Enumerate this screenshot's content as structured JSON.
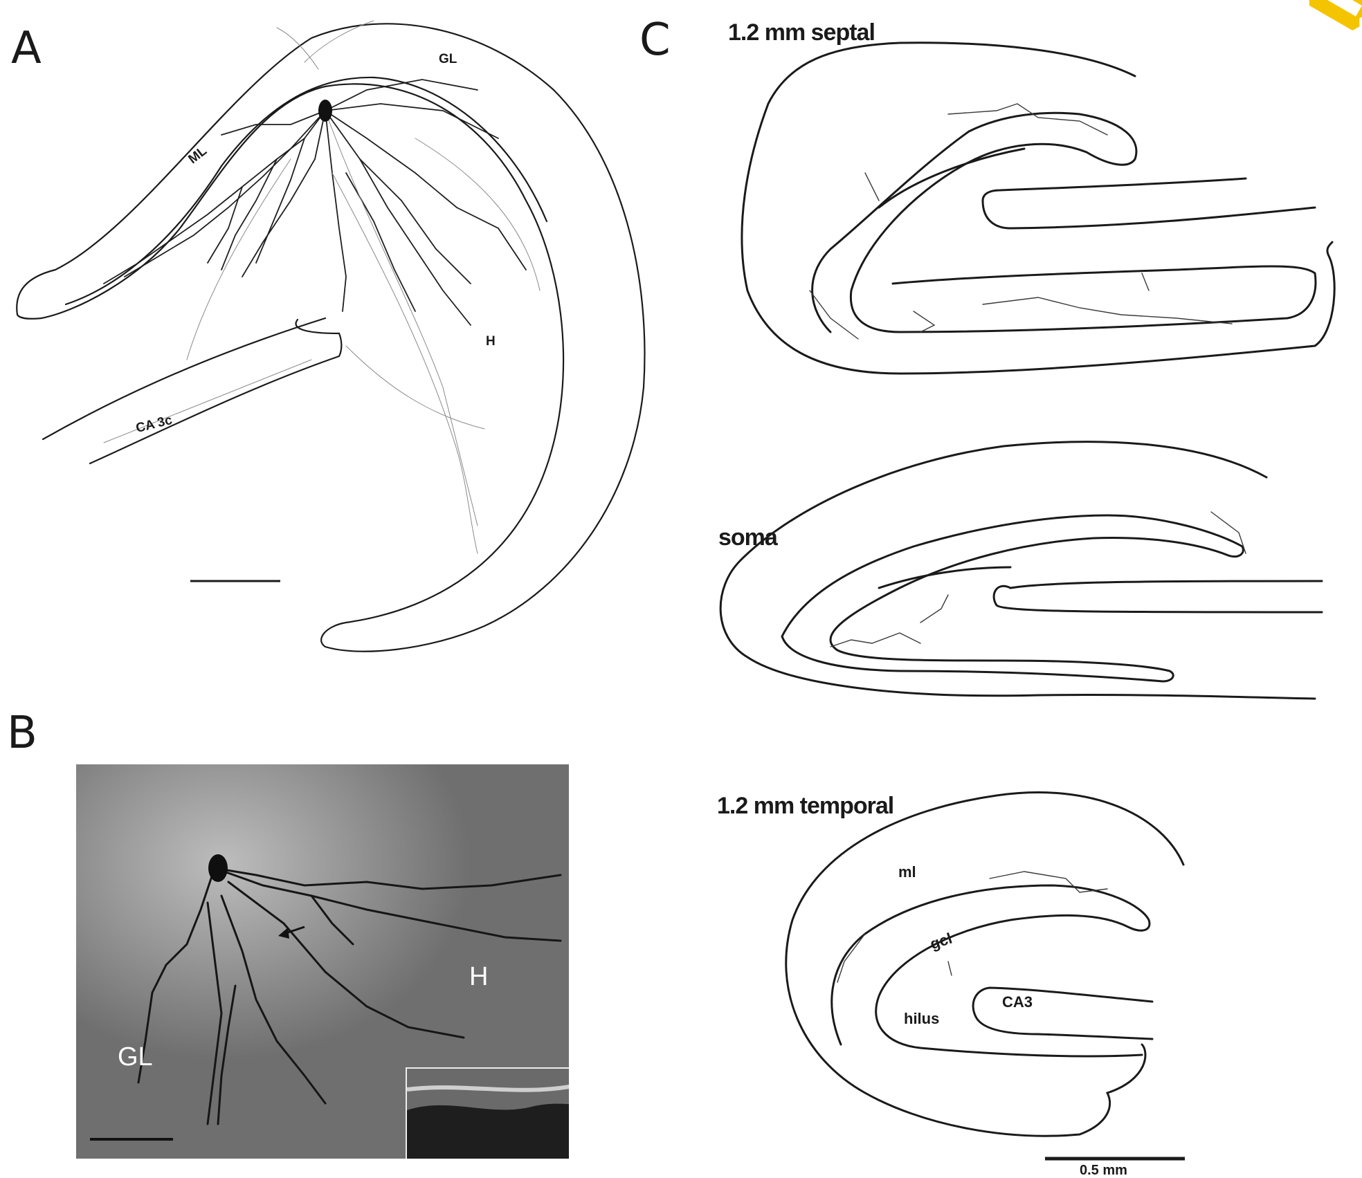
{
  "panels": {
    "a": {
      "letter": "A",
      "labels": {
        "gl": "GL",
        "ml": "ML",
        "h": "H",
        "ca3c": "CA 3c"
      }
    },
    "b": {
      "letter": "B",
      "labels": {
        "gl": "GL",
        "h": "H"
      }
    },
    "c": {
      "letter": "C",
      "sections": {
        "septal": "1.2 mm septal",
        "soma": "soma",
        "temporal": "1.2 mm temporal"
      },
      "labels": {
        "ml": "ml",
        "gcl": "gcl",
        "hilus": "hilus",
        "ca3": "CA3"
      },
      "scale_bar": "0.5 mm"
    }
  },
  "colors": {
    "ink": "#1a1a1a",
    "photo_bg": "#6f6f6f",
    "badge": "#f5c400"
  },
  "icons": {
    "badge": "watermark-gear-badge"
  }
}
